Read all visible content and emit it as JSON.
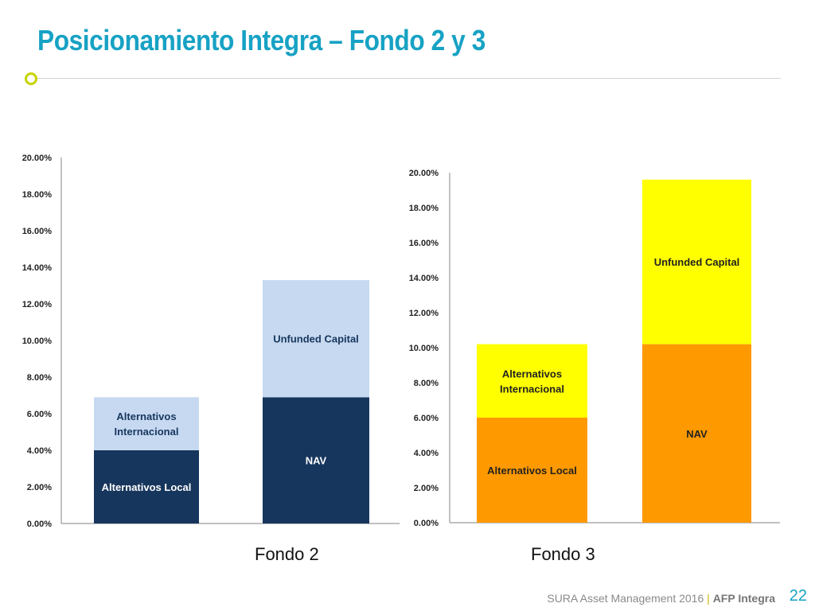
{
  "slide": {
    "title": "Posicionamiento Integra – Fondo 2 y 3",
    "footer_text": "SURA Asset Management 2016",
    "footer_separator": "|",
    "footer_brand": "AFP Integra",
    "page_number": "22"
  },
  "colors": {
    "title": "#17a2c4",
    "accent": "#c8d400",
    "fondo2_base": "#17365d",
    "fondo2_top": "#c6d9f1",
    "fondo3_base": "#ff9900",
    "fondo3_top": "#ffff00"
  },
  "chart_data": [
    {
      "type": "bar",
      "stacked": true,
      "xlabel": "Fondo 2",
      "ylim": [
        0,
        20
      ],
      "yticks": [
        "0.00%",
        "2.00%",
        "4.00%",
        "6.00%",
        "8.00%",
        "10.00%",
        "12.00%",
        "14.00%",
        "16.00%",
        "18.00%",
        "20.00%"
      ],
      "bars": [
        {
          "segments": [
            {
              "name": "Alternativos Local",
              "value": 4.0
            },
            {
              "name": "Alternativos Internacional",
              "value": 2.9
            }
          ]
        },
        {
          "segments": [
            {
              "name": "NAV",
              "value": 6.9
            },
            {
              "name": "Unfunded Capital",
              "value": 6.4
            }
          ]
        }
      ],
      "grid": false,
      "legend": "none"
    },
    {
      "type": "bar",
      "stacked": true,
      "xlabel": "Fondo 3",
      "ylim": [
        0,
        20
      ],
      "yticks": [
        "0.00%",
        "2.00%",
        "4.00%",
        "6.00%",
        "8.00%",
        "10.00%",
        "12.00%",
        "14.00%",
        "16.00%",
        "18.00%",
        "20.00%"
      ],
      "bars": [
        {
          "segments": [
            {
              "name": "Alternativos Local",
              "value": 6.0
            },
            {
              "name": "Alternativos Internacional",
              "value": 4.2
            }
          ]
        },
        {
          "segments": [
            {
              "name": "NAV",
              "value": 10.2
            },
            {
              "name": "Unfunded Capital",
              "value": 9.4
            }
          ]
        }
      ],
      "grid": false,
      "legend": "none"
    }
  ]
}
